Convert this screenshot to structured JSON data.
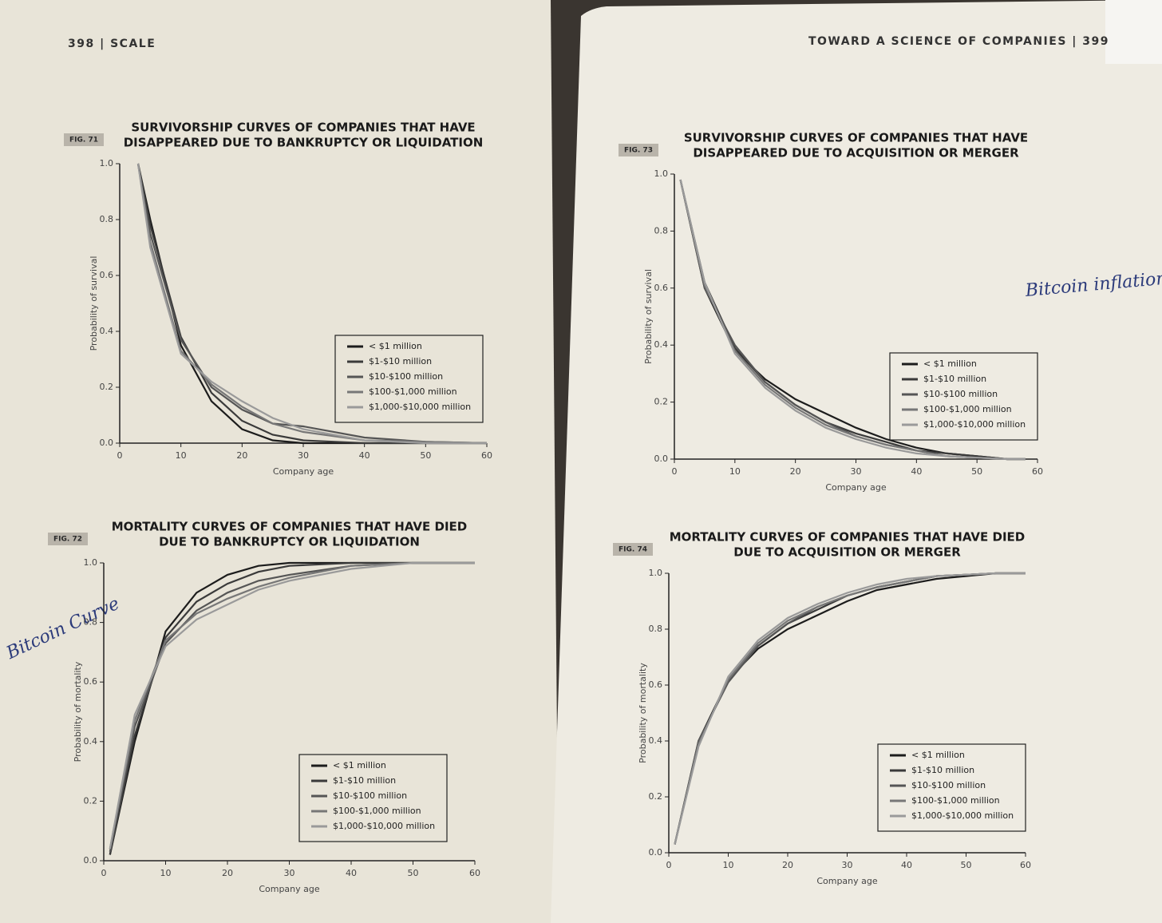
{
  "page": {
    "left_header": "398 | SCALE",
    "right_header": "TOWARD A SCIENCE OF COMPANIES | 399"
  },
  "notes": [
    "Bitcoin inflation",
    "Bitcoin Curve"
  ],
  "chart_data": [
    {
      "type": "line",
      "figure": "FIG. 71",
      "title": [
        "SURVIVORSHIP CURVES OF COMPANIES THAT HAVE",
        "DISAPPEARED DUE TO BANKRUPTCY OR LIQUIDATION"
      ],
      "xlabel": "Company age",
      "ylabel": "Probability of survival",
      "x": [
        3,
        5,
        10,
        15,
        20,
        25,
        30,
        40,
        50,
        60
      ],
      "series": [
        {
          "name": "< $1 million",
          "color": "#1c1c1c",
          "values": [
            1.0,
            0.8,
            0.35,
            0.15,
            0.05,
            0.01,
            0.0,
            0.0,
            0.0,
            0.0
          ]
        },
        {
          "name": "$1-$10 million",
          "color": "#3a3a3a",
          "values": [
            1.0,
            0.78,
            0.38,
            0.18,
            0.08,
            0.03,
            0.01,
            0.0,
            0.0,
            0.0
          ]
        },
        {
          "name": "$10-$100 million",
          "color": "#555555",
          "values": [
            1.0,
            0.75,
            0.37,
            0.2,
            0.12,
            0.07,
            0.06,
            0.02,
            0.005,
            0.0
          ]
        },
        {
          "name": "$100-$1,000 million",
          "color": "#777777",
          "values": [
            1.0,
            0.72,
            0.33,
            0.21,
            0.13,
            0.07,
            0.04,
            0.01,
            0.005,
            0.0
          ]
        },
        {
          "name": "$1,000-$10,000 million",
          "color": "#9a9a9a",
          "values": [
            1.0,
            0.7,
            0.32,
            0.22,
            0.15,
            0.09,
            0.05,
            0.01,
            0.0,
            0.0
          ]
        }
      ],
      "xlim": [
        0,
        60
      ],
      "ylim": [
        0,
        1
      ],
      "xticks": [
        0,
        10,
        20,
        30,
        40,
        50,
        60
      ],
      "yticks": [
        {
          "value": 0,
          "label": "0.0"
        },
        0.2,
        0.4,
        0.6,
        0.8,
        {
          "value": 1,
          "label": "1.0"
        }
      ]
    },
    {
      "type": "line",
      "figure": "FIG. 72",
      "title": [
        "MORTALITY CURVES OF COMPANIES THAT HAVE DIED",
        "DUE TO BANKRUPTCY OR LIQUIDATION"
      ],
      "xlabel": "Company age",
      "ylabel": "Probability of mortality",
      "x": [
        1,
        5,
        10,
        15,
        20,
        25,
        30,
        40,
        50,
        60
      ],
      "series": [
        {
          "name": "< $1 million",
          "color": "#1c1c1c",
          "values": [
            0.02,
            0.4,
            0.77,
            0.9,
            0.96,
            0.99,
            1.0,
            1.0,
            1.0,
            1.0
          ]
        },
        {
          "name": "$1-$10 million",
          "color": "#3a3a3a",
          "values": [
            0.02,
            0.42,
            0.75,
            0.87,
            0.93,
            0.97,
            0.99,
            1.0,
            1.0,
            1.0
          ]
        },
        {
          "name": "$10-$100 million",
          "color": "#555555",
          "values": [
            0.03,
            0.45,
            0.73,
            0.84,
            0.9,
            0.94,
            0.96,
            0.99,
            1.0,
            1.0
          ]
        },
        {
          "name": "$100-$1,000 million",
          "color": "#777777",
          "values": [
            0.04,
            0.47,
            0.74,
            0.83,
            0.88,
            0.92,
            0.95,
            0.99,
            1.0,
            1.0
          ]
        },
        {
          "name": "$1,000-$10,000 million",
          "color": "#9a9a9a",
          "values": [
            0.04,
            0.49,
            0.72,
            0.81,
            0.86,
            0.91,
            0.94,
            0.98,
            1.0,
            1.0
          ]
        }
      ],
      "xlim": [
        0,
        60
      ],
      "ylim": [
        0,
        1
      ],
      "xticks": [
        0,
        10,
        20,
        30,
        40,
        50,
        60
      ],
      "yticks": [
        {
          "value": 0,
          "label": "0.0"
        },
        0.2,
        0.4,
        0.6,
        0.8,
        {
          "value": 1,
          "label": "1.0"
        }
      ]
    },
    {
      "type": "line",
      "figure": "FIG. 73",
      "title": [
        "SURVIVORSHIP CURVES OF COMPANIES THAT HAVE",
        "DISAPPEARED DUE TO ACQUISITION OR MERGER"
      ],
      "xlabel": "Company age",
      "ylabel": "Probability of survival",
      "x": [
        1,
        5,
        10,
        15,
        20,
        25,
        30,
        35,
        40,
        45,
        50,
        55,
        58
      ],
      "series": [
        {
          "name": "< $1 million",
          "color": "#1c1c1c",
          "values": [
            0.98,
            0.6,
            0.38,
            0.28,
            0.21,
            0.16,
            0.11,
            0.07,
            0.04,
            0.02,
            0.01,
            0.0,
            0.0
          ]
        },
        {
          "name": "$1-$10 million",
          "color": "#3a3a3a",
          "values": [
            0.98,
            0.62,
            0.39,
            0.27,
            0.19,
            0.13,
            0.09,
            0.06,
            0.03,
            0.02,
            0.01,
            0.0,
            0.0
          ]
        },
        {
          "name": "$10-$100 million",
          "color": "#555555",
          "values": [
            0.98,
            0.6,
            0.4,
            0.27,
            0.19,
            0.13,
            0.08,
            0.05,
            0.03,
            0.01,
            0.005,
            0.0,
            0.0
          ]
        },
        {
          "name": "$100-$1,000 million",
          "color": "#777777",
          "values": [
            0.98,
            0.61,
            0.38,
            0.26,
            0.18,
            0.12,
            0.08,
            0.05,
            0.03,
            0.01,
            0.005,
            0.0,
            0.0
          ]
        },
        {
          "name": "$1,000-$10,000 million",
          "color": "#9a9a9a",
          "values": [
            0.98,
            0.62,
            0.37,
            0.25,
            0.17,
            0.11,
            0.07,
            0.04,
            0.02,
            0.01,
            0.005,
            0.0,
            0.0
          ]
        }
      ],
      "xlim": [
        0,
        60
      ],
      "ylim": [
        0,
        1
      ],
      "xticks": [
        0,
        10,
        20,
        30,
        40,
        50,
        60
      ],
      "yticks": [
        {
          "value": 0,
          "label": "0.0"
        },
        0.2,
        0.4,
        0.6,
        0.8,
        {
          "value": 1,
          "label": "1.0"
        }
      ]
    },
    {
      "type": "line",
      "figure": "FIG. 74",
      "title": [
        "MORTALITY CURVES OF COMPANIES THAT HAVE DIED",
        "DUE TO ACQUISITION OR MERGER"
      ],
      "xlabel": "Company age",
      "ylabel": "Probability of mortality",
      "x": [
        1,
        5,
        10,
        15,
        20,
        25,
        30,
        35,
        40,
        45,
        50,
        55,
        60
      ],
      "series": [
        {
          "name": "< $1 million",
          "color": "#1c1c1c",
          "values": [
            0.03,
            0.4,
            0.62,
            0.73,
            0.8,
            0.85,
            0.9,
            0.94,
            0.96,
            0.98,
            0.99,
            1.0,
            1.0
          ]
        },
        {
          "name": "$1-$10 million",
          "color": "#3a3a3a",
          "values": [
            0.03,
            0.39,
            0.62,
            0.74,
            0.82,
            0.87,
            0.92,
            0.95,
            0.97,
            0.99,
            0.995,
            1.0,
            1.0
          ]
        },
        {
          "name": "$10-$100 million",
          "color": "#555555",
          "values": [
            0.03,
            0.4,
            0.61,
            0.74,
            0.82,
            0.88,
            0.92,
            0.95,
            0.97,
            0.99,
            0.995,
            1.0,
            1.0
          ]
        },
        {
          "name": "$100-$1,000 million",
          "color": "#777777",
          "values": [
            0.03,
            0.39,
            0.62,
            0.75,
            0.83,
            0.88,
            0.92,
            0.95,
            0.97,
            0.99,
            0.995,
            1.0,
            1.0
          ]
        },
        {
          "name": "$1,000-$10,000 million",
          "color": "#9a9a9a",
          "values": [
            0.03,
            0.38,
            0.63,
            0.76,
            0.84,
            0.89,
            0.93,
            0.96,
            0.98,
            0.99,
            0.995,
            1.0,
            1.0
          ]
        }
      ],
      "xlim": [
        0,
        60
      ],
      "ylim": [
        0,
        1
      ],
      "xticks": [
        0,
        10,
        20,
        30,
        40,
        50,
        60
      ],
      "yticks": [
        {
          "value": 0,
          "label": "0.0"
        },
        0.2,
        0.4,
        0.6,
        0.8,
        {
          "value": 1,
          "label": "1.0"
        }
      ]
    }
  ]
}
